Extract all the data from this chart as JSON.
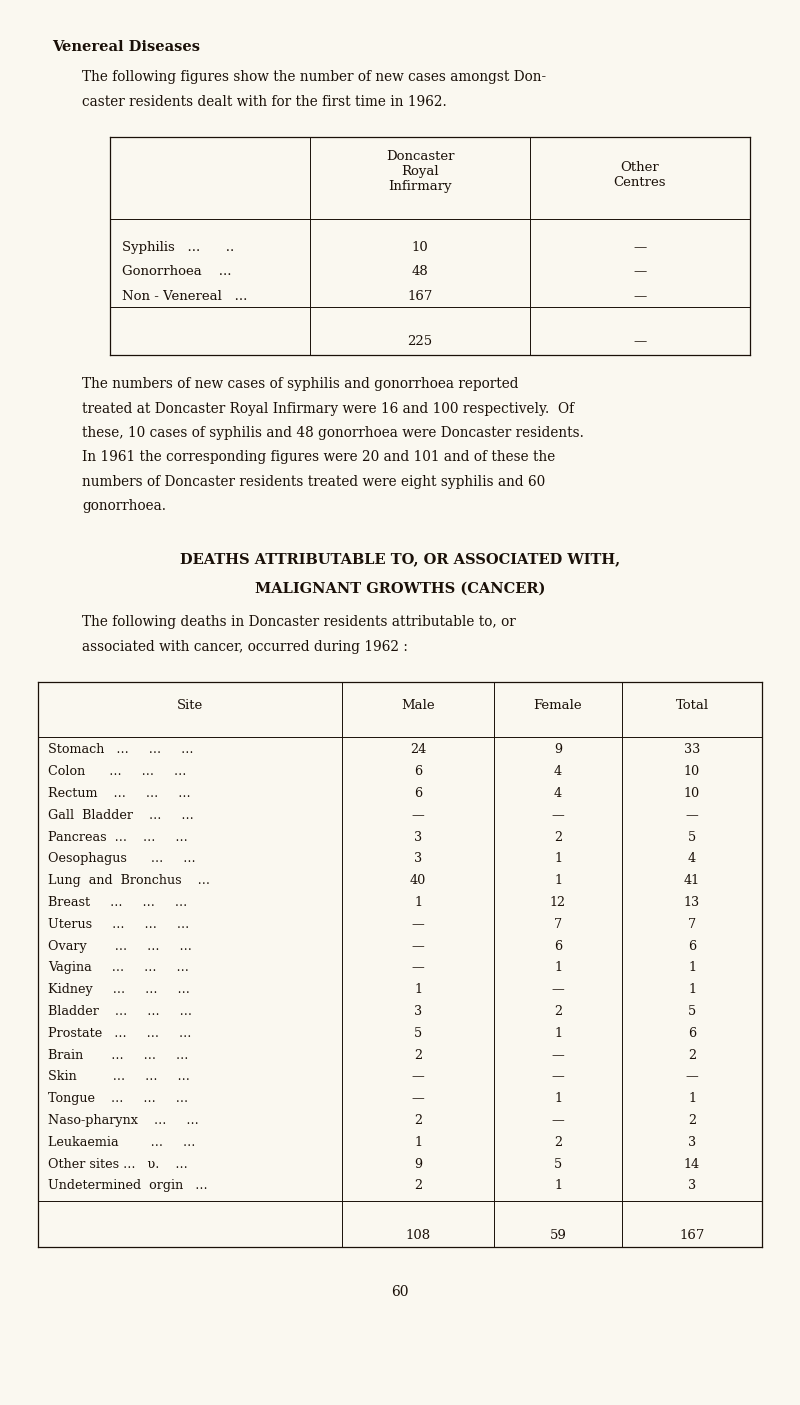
{
  "bg_color": "#faf8f0",
  "text_color": "#1a1008",
  "page_number": "60",
  "section1_title": "Venereal Diseases",
  "section2_title1": "DEATHS ATTRIBUTABLE TO, OR ASSOCIATED WITH,",
  "section2_title2": "MALIGNANT GROWTHS (CANCER)",
  "vd_rows": [
    [
      "Syphilis   ...      ..",
      "10",
      "—"
    ],
    [
      "Gonorrhoea    ...",
      "48",
      "—"
    ],
    [
      "Non - Venereal   ...",
      "167",
      "—"
    ]
  ],
  "vd_total": [
    "225",
    "—"
  ],
  "cancer_sites": [
    "Stomach   ...     ...     ...",
    "Colon      ...     ...     ...",
    "Rectum    ...     ...     ...",
    "Gall  Bladder    ...     ...",
    "Pancreas  ...    ...     ...",
    "Oesophagus      ...     ...",
    "Lung  and  Bronchus    ...",
    "Breast     ...     ...     ...",
    "Uterus     ...     ...     ...",
    "Ovary       ...     ...     ...",
    "Vagina     ...     ...     ...",
    "Kidney     ...     ...     ...",
    "Bladder    ...     ...     ...",
    "Prostate   ...     ...     ...",
    "Brain       ...     ...     ...",
    "Skin         ...     ...     ...",
    "Tongue    ...     ...     ...",
    "Naso-pharynx    ...     ...",
    "Leukaemia        ...     ...",
    "Other sites ...   υ.    ...",
    "Undetermined  orgin   ..."
  ],
  "cancer_male": [
    "24",
    "6",
    "6",
    "—",
    "3",
    "3",
    "40",
    "1",
    "—",
    "—",
    "—",
    "1",
    "3",
    "5",
    "2",
    "—",
    "—",
    "2",
    "1",
    "9",
    "2"
  ],
  "cancer_female": [
    "9",
    "4",
    "4",
    "—",
    "2",
    "1",
    "1",
    "12",
    "7",
    "6",
    "1",
    "—",
    "2",
    "1",
    "—",
    "—",
    "1",
    "—",
    "2",
    "5",
    "1"
  ],
  "cancer_total": [
    "33",
    "10",
    "10",
    "—",
    "5",
    "4",
    "41",
    "13",
    "7",
    "6",
    "1",
    "1",
    "5",
    "6",
    "2",
    "—",
    "1",
    "2",
    "3",
    "14",
    "3"
  ],
  "cancer_sum": [
    "108",
    "59",
    "167"
  ]
}
